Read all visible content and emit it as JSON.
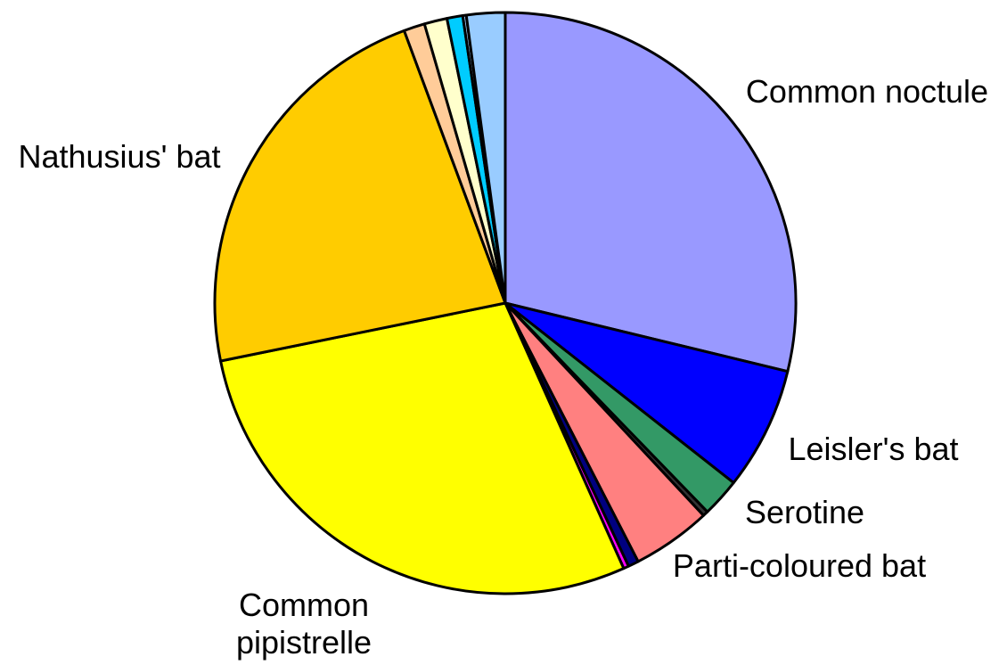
{
  "chart_data": {
    "type": "pie",
    "start_angle_deg": 0,
    "direction": "clockwise",
    "slices": [
      {
        "label": "Common noctule",
        "value": 29.5,
        "color": "#9999FF"
      },
      {
        "label": "Leisler's bat",
        "value": 7.0,
        "color": "#0000FF"
      },
      {
        "label": "Serotine",
        "value": 2.2,
        "color": "#339966"
      },
      {
        "label": "",
        "value": 0.3,
        "color": "#333333"
      },
      {
        "label": "Parti-coloured bat",
        "value": 4.5,
        "color": "#FF8080"
      },
      {
        "label": "",
        "value": 0.6,
        "color": "#000080"
      },
      {
        "label": "",
        "value": 0.3,
        "color": "#FF00FF"
      },
      {
        "label": "Common pipistrelle",
        "value": 29.2,
        "color": "#FFFF00"
      },
      {
        "label": "Nathusius' bat",
        "value": 23.1,
        "color": "#FFCC00"
      },
      {
        "label": "",
        "value": 1.2,
        "color": "#FFCC99"
      },
      {
        "label": "",
        "value": 1.3,
        "color": "#FFFFCC"
      },
      {
        "label": "",
        "value": 0.9,
        "color": "#00CCFF"
      },
      {
        "label": "",
        "value": 0.2,
        "color": "#99CCFF"
      },
      {
        "label": "",
        "value": 2.2,
        "color": "#99CCFF"
      }
    ]
  }
}
